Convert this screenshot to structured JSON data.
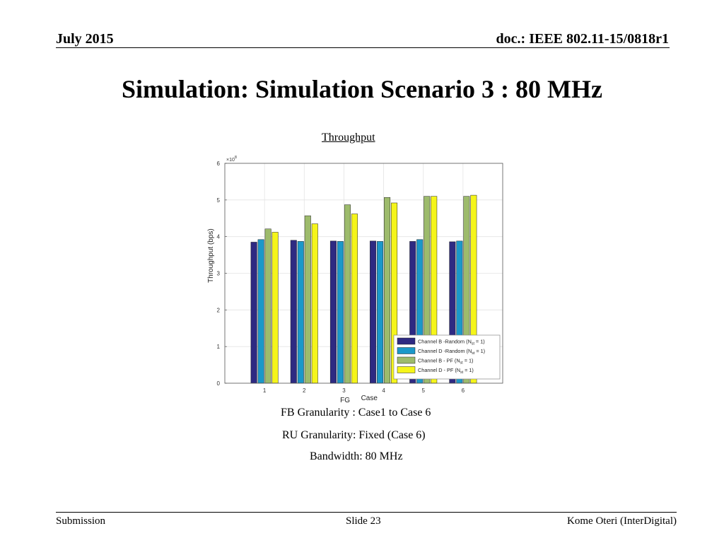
{
  "header": {
    "date": "July 2015",
    "doc": "doc.: IEEE 802.11-15/0818r1"
  },
  "title": "Simulation: Simulation Scenario 3 : 80 MHz",
  "subtitle": "Throughput",
  "captions": [
    "FB Granularity : Case1 to Case 6",
    "RU Granularity: Fixed (Case 6)",
    "Bandwidth: 80 MHz"
  ],
  "footer": {
    "left": "Submission",
    "center": "Slide 23",
    "right": "Kome Oteri (InterDigital)"
  },
  "chart_data": {
    "type": "bar",
    "categories": [
      "1",
      "2",
      "3",
      "4",
      "5",
      "6"
    ],
    "xlabel_prefix": "FG",
    "xlabel": "Case",
    "ylabel": "Throughput   (bps)",
    "y_exponent_label": "×10",
    "y_exponent": "8",
    "ylim": [
      0,
      6
    ],
    "y_ticks": [
      "0",
      "1",
      "2",
      "3",
      "4",
      "5",
      "6"
    ],
    "grid": true,
    "legend_position": "bottom-right",
    "series": [
      {
        "name": "Channel B -Random (N",
        "sub": "st",
        "suffix": " = 1)",
        "color": "#2e2a82",
        "values": [
          3.85,
          3.9,
          3.88,
          3.88,
          3.87,
          3.86
        ]
      },
      {
        "name": "Channel D -Random (N",
        "sub": "st",
        "suffix": " = 1)",
        "color": "#1b98c9",
        "values": [
          3.92,
          3.87,
          3.87,
          3.87,
          3.92,
          3.88
        ]
      },
      {
        "name": "Channel B - PF (N",
        "sub": "st",
        "suffix": " = 1)",
        "color": "#9dbb6c",
        "values": [
          4.21,
          4.57,
          4.87,
          5.07,
          5.1,
          5.1
        ]
      },
      {
        "name": "Channel D - PF (N",
        "sub": "st",
        "suffix": " = 1)",
        "color": "#f5f51a",
        "values": [
          4.12,
          4.35,
          4.62,
          4.92,
          5.1,
          5.13
        ]
      }
    ]
  }
}
